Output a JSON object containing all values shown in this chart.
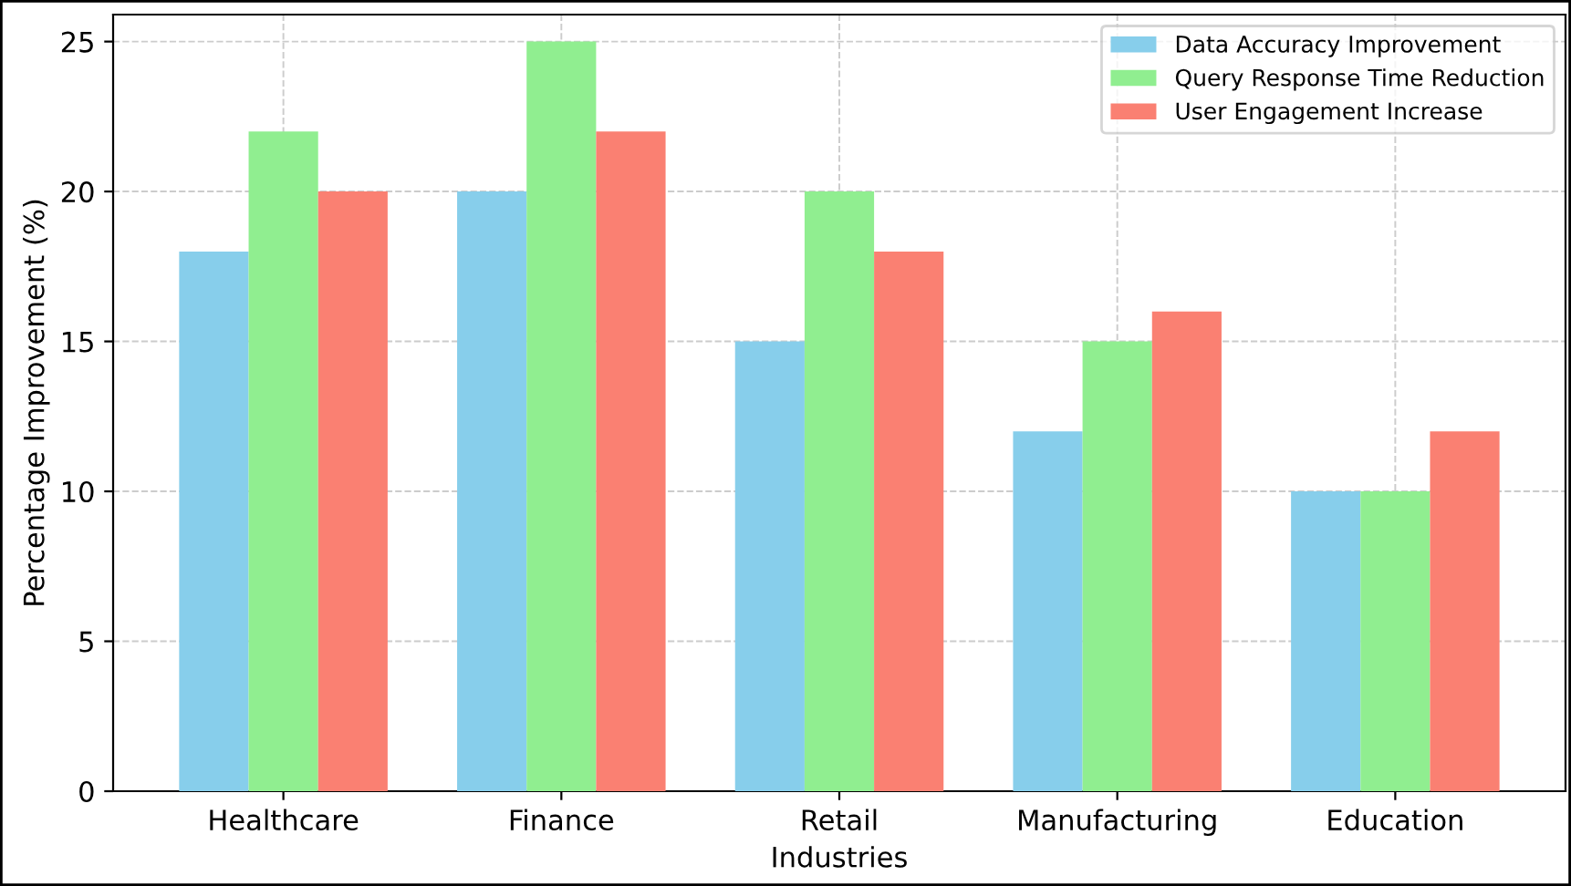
{
  "chart_data": {
    "type": "bar",
    "xlabel": "Industries",
    "ylabel": "Percentage Improvement (%)",
    "categories": [
      "Healthcare",
      "Finance",
      "Retail",
      "Manufacturing",
      "Education"
    ],
    "series": [
      {
        "name": "Data Accuracy Improvement",
        "color": "#87ceeb",
        "values": [
          18,
          20,
          15,
          12,
          10
        ]
      },
      {
        "name": "Query Response Time Reduction",
        "color": "#90ee90",
        "values": [
          22,
          25,
          20,
          15,
          10
        ]
      },
      {
        "name": "User Engagement Increase",
        "color": "#fa8072",
        "values": [
          20,
          22,
          18,
          16,
          12
        ]
      }
    ],
    "ylim": [
      0,
      25.9
    ],
    "yticks": [
      0,
      5,
      10,
      15,
      20,
      25
    ],
    "grid": true,
    "legend": "top right"
  }
}
